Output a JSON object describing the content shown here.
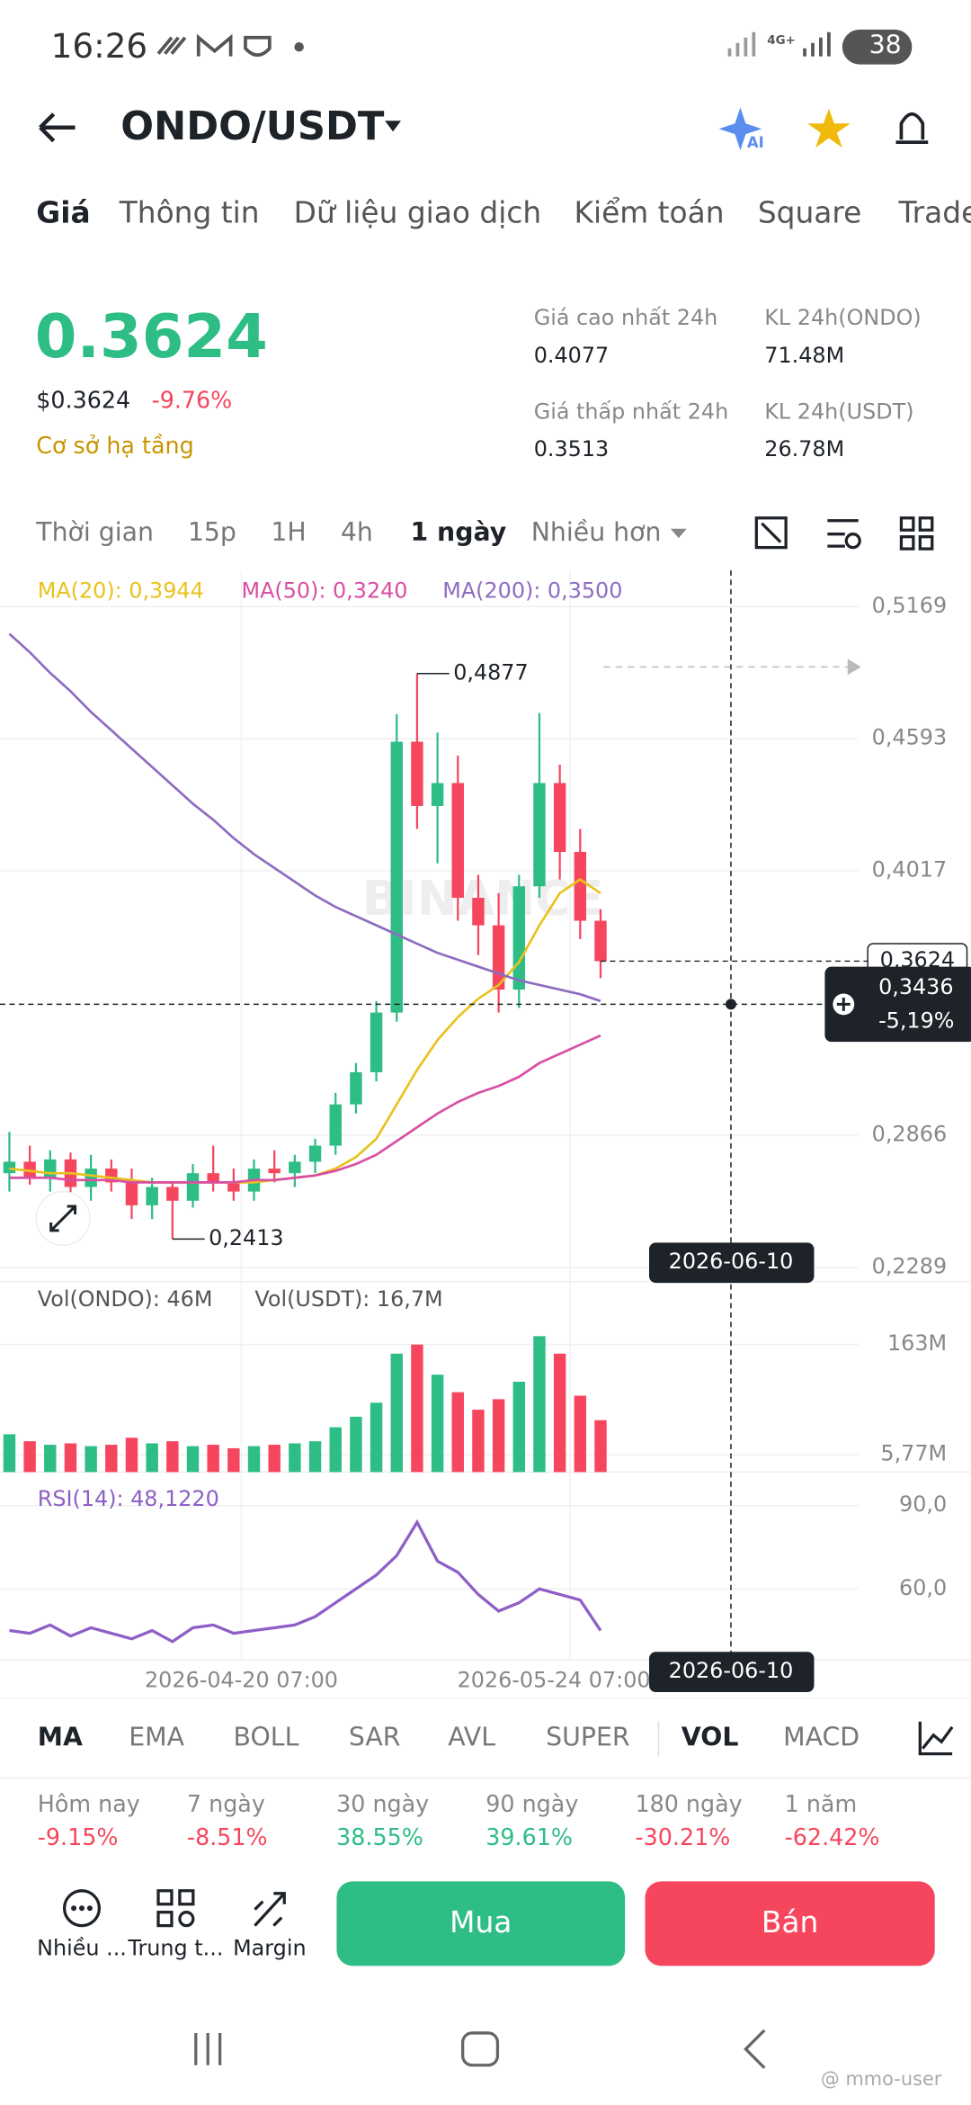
{
  "status_bar": {
    "time": "16:26",
    "network": "4G+",
    "battery": "38"
  },
  "header": {
    "title": "ONDO/USDT",
    "ai_badge": "AI"
  },
  "tabs": [
    "Giá",
    "Thông tin",
    "Dữ liệu giao dịch",
    "Kiểm toán",
    "Square",
    "Trade"
  ],
  "ticker": {
    "price": "0.3624",
    "price_usd": "$0.3624",
    "change": "-9.76%",
    "category": "Cơ sở hạ tầng",
    "stats": [
      {
        "label": "Giá cao nhất 24h",
        "value": "0.4077"
      },
      {
        "label": "KL 24h(ONDO)",
        "value": "71.48M"
      },
      {
        "label": "Giá thấp nhất 24h",
        "value": "0.3513"
      },
      {
        "label": "KL 24h(USDT)",
        "value": "26.78M"
      }
    ]
  },
  "intervals": [
    "Thời gian",
    "15p",
    "1H",
    "4h",
    "1 ngày",
    "Nhiều hơn"
  ],
  "chart_data": [
    {
      "type": "candlestick",
      "watermark": "BINANCE",
      "up_color": "#2ebd85",
      "down_color": "#f6465d",
      "ohlc": {
        "open": [
          0.27,
          0.275,
          0.268,
          0.276,
          0.264,
          0.272,
          0.266,
          0.256,
          0.264,
          0.258,
          0.27,
          0.266,
          0.262,
          0.272,
          0.27,
          0.275,
          0.282,
          0.3,
          0.314,
          0.34,
          0.458,
          0.43,
          0.44,
          0.39,
          0.378,
          0.35,
          0.395,
          0.44,
          0.41,
          0.38
        ],
        "high": [
          0.288,
          0.282,
          0.28,
          0.279,
          0.278,
          0.276,
          0.272,
          0.268,
          0.266,
          0.274,
          0.282,
          0.272,
          0.276,
          0.28,
          0.278,
          0.285,
          0.305,
          0.318,
          0.345,
          0.47,
          0.4877,
          0.462,
          0.452,
          0.4,
          0.392,
          0.4,
          0.4705,
          0.448,
          0.42,
          0.385
        ],
        "low": [
          0.262,
          0.265,
          0.262,
          0.26,
          0.258,
          0.262,
          0.25,
          0.25,
          0.2413,
          0.255,
          0.262,
          0.258,
          0.258,
          0.266,
          0.264,
          0.27,
          0.278,
          0.296,
          0.31,
          0.336,
          0.42,
          0.405,
          0.38,
          0.365,
          0.34,
          0.342,
          0.39,
          0.398,
          0.372,
          0.355
        ],
        "close": [
          0.275,
          0.268,
          0.276,
          0.264,
          0.272,
          0.266,
          0.256,
          0.264,
          0.258,
          0.27,
          0.266,
          0.262,
          0.272,
          0.27,
          0.275,
          0.282,
          0.3,
          0.314,
          0.34,
          0.458,
          0.43,
          0.44,
          0.39,
          0.378,
          0.35,
          0.395,
          0.44,
          0.41,
          0.38,
          0.3624
        ]
      },
      "lines": [
        {
          "name": "MA(20): 0,3944",
          "color": "#e8c21e",
          "values": [
            0.272,
            0.271,
            0.27,
            0.27,
            0.269,
            0.268,
            0.267,
            0.266,
            0.266,
            0.266,
            0.266,
            0.266,
            0.266,
            0.267,
            0.268,
            0.269,
            0.272,
            0.277,
            0.285,
            0.3,
            0.315,
            0.328,
            0.338,
            0.346,
            0.352,
            0.362,
            0.378,
            0.392,
            0.398,
            0.392
          ]
        },
        {
          "name": "MA(50): 0,3240",
          "color": "#d84fa4",
          "values": [
            0.268,
            0.268,
            0.268,
            0.267,
            0.267,
            0.267,
            0.266,
            0.266,
            0.266,
            0.266,
            0.266,
            0.266,
            0.267,
            0.267,
            0.268,
            0.269,
            0.271,
            0.274,
            0.278,
            0.284,
            0.29,
            0.296,
            0.301,
            0.305,
            0.308,
            0.312,
            0.318,
            0.322,
            0.326,
            0.33
          ]
        },
        {
          "name": "MA(200): 0,3500",
          "color": "#8e6cc0",
          "values": [
            0.505,
            0.497,
            0.488,
            0.48,
            0.471,
            0.463,
            0.455,
            0.447,
            0.439,
            0.431,
            0.424,
            0.416,
            0.409,
            0.403,
            0.397,
            0.391,
            0.386,
            0.382,
            0.378,
            0.374,
            0.37,
            0.366,
            0.363,
            0.36,
            0.357,
            0.354,
            0.352,
            0.35,
            0.348,
            0.345
          ]
        }
      ],
      "ylim": [
        0.2228,
        0.5327
      ],
      "yticks": [
        {
          "value": 0.5169,
          "label": "0,5169"
        },
        {
          "value": 0.4593,
          "label": "0,4593"
        },
        {
          "value": 0.4017,
          "label": "0,4017"
        },
        {
          "value": 0.2866,
          "label": "0,2866"
        },
        {
          "value": 0.2289,
          "label": "0,2289"
        }
      ],
      "annotations": [
        {
          "value": 0.4877,
          "label": "0,4877"
        },
        {
          "value": 0.2413,
          "label": "0,2413"
        }
      ],
      "last_price": {
        "value": 0.3624,
        "label": "0,3624"
      },
      "crosshair": {
        "value": 0.3436,
        "label": "0,3436",
        "change": "-5,19%",
        "date": "2026-06-10"
      },
      "x_labels": [
        "2026-04-20 07:00",
        "2026-05-24 07:00"
      ]
    },
    {
      "type": "bar",
      "legend": [
        "Vol(ONDO): 46M",
        "Vol(USDT): 16,7M"
      ],
      "values": [
        35,
        25,
        20,
        22,
        18,
        20,
        30,
        22,
        25,
        18,
        20,
        15,
        18,
        20,
        22,
        25,
        45,
        60,
        80,
        150,
        163,
        120,
        95,
        70,
        85,
        110,
        175,
        150,
        90,
        55
      ],
      "ylim": [
        -19,
        253
      ],
      "yticks": [
        {
          "value": 163,
          "label": "163M"
        },
        {
          "value": 5.77,
          "label": "5,77M"
        }
      ]
    },
    {
      "type": "line",
      "name": "RSI(14): 48,1220",
      "color": "#8e5fc6",
      "values": [
        45,
        44,
        47,
        43,
        46,
        44,
        42,
        45,
        41,
        46,
        47,
        44,
        45,
        46,
        47,
        50,
        55,
        60,
        65,
        72,
        84,
        70,
        66,
        58,
        52,
        55,
        60,
        58,
        56,
        45
      ],
      "ylim": [
        34.4,
        102.1
      ],
      "yticks": [
        {
          "value": 90,
          "label": "90,0"
        },
        {
          "value": 60,
          "label": "60,0"
        }
      ]
    }
  ],
  "indicators": [
    "MA",
    "EMA",
    "BOLL",
    "SAR",
    "AVL",
    "SUPER",
    "VOL",
    "MACD"
  ],
  "performance": [
    {
      "label": "Hôm nay",
      "value": "-9.15%"
    },
    {
      "label": "7 ngày",
      "value": "-8.51%"
    },
    {
      "label": "30 ngày",
      "value": "38.55%"
    },
    {
      "label": "90 ngày",
      "value": "39.61%"
    },
    {
      "label": "180 ngày",
      "value": "-30.21%"
    },
    {
      "label": "1 năm",
      "value": "-62.42%"
    }
  ],
  "actions": [
    "Nhiều ...",
    "Trung t...",
    "Margin"
  ],
  "buttons": {
    "buy": "Mua",
    "sell": "Bán"
  },
  "watermark": "@ mmo-user"
}
